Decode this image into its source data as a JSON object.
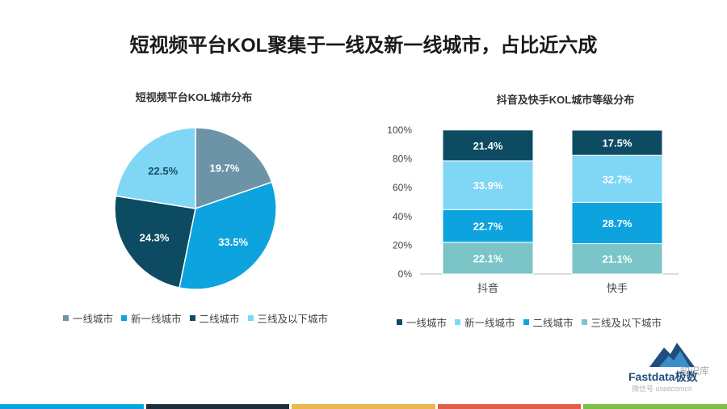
{
  "page": {
    "title": "短视频平台KOL聚集于一线及新一线城市，占比近六成"
  },
  "chart_data": [
    {
      "type": "pie",
      "title": "短视频平台KOL城市分布",
      "categories": [
        "一线城市",
        "新一线城市",
        "二线城市",
        "三线及以下城市"
      ],
      "values": [
        19.7,
        33.5,
        24.3,
        22.5
      ],
      "labels": [
        "19.7%",
        "33.5%",
        "24.3%",
        "22.5%"
      ],
      "colors": [
        "#6D93A7",
        "#0CA3DE",
        "#0D4B63",
        "#7FD6F5"
      ],
      "legend_position": "bottom"
    },
    {
      "type": "bar",
      "stacked": true,
      "title": "抖音及快手KOL城市等级分布",
      "categories": [
        "抖音",
        "快手"
      ],
      "series": [
        {
          "name": "三线及以下城市",
          "values": [
            22.1,
            21.1
          ],
          "labels": [
            "22.1%",
            "21.1%"
          ],
          "color": "#7BC5C9"
        },
        {
          "name": "二线城市",
          "values": [
            22.7,
            28.7
          ],
          "labels": [
            "22.7%",
            "28.7%"
          ],
          "color": "#0CA3DE"
        },
        {
          "name": "新一线城市",
          "values": [
            33.9,
            32.7
          ],
          "labels": [
            "33.9%",
            "32.7%"
          ],
          "color": "#7FD6F5"
        },
        {
          "name": "一线城市",
          "values": [
            21.4,
            17.5
          ],
          "labels": [
            "21.4%",
            "17.5%"
          ],
          "color": "#0D4B63"
        }
      ],
      "ylim": [
        0,
        100
      ],
      "yticks": [
        "0%",
        "20%",
        "40%",
        "60%",
        "80%",
        "100%"
      ],
      "legend_order": [
        "一线城市",
        "新一线城市",
        "二线城市",
        "三线及以下城市"
      ],
      "legend_colors": [
        "#0D4B63",
        "#7FD6F5",
        "#0CA3DE",
        "#7BC5C9"
      ],
      "legend_position": "bottom"
    }
  ],
  "brand": {
    "name": "Fastdata极数",
    "watermark_1": "知识库",
    "watermark_2": "微信号 useitcomcn"
  },
  "bottom_bar_colors": [
    "#0CA3DE",
    "#1F2D3A",
    "#E8B84A",
    "#E25B4A",
    "#7BBE4A"
  ]
}
